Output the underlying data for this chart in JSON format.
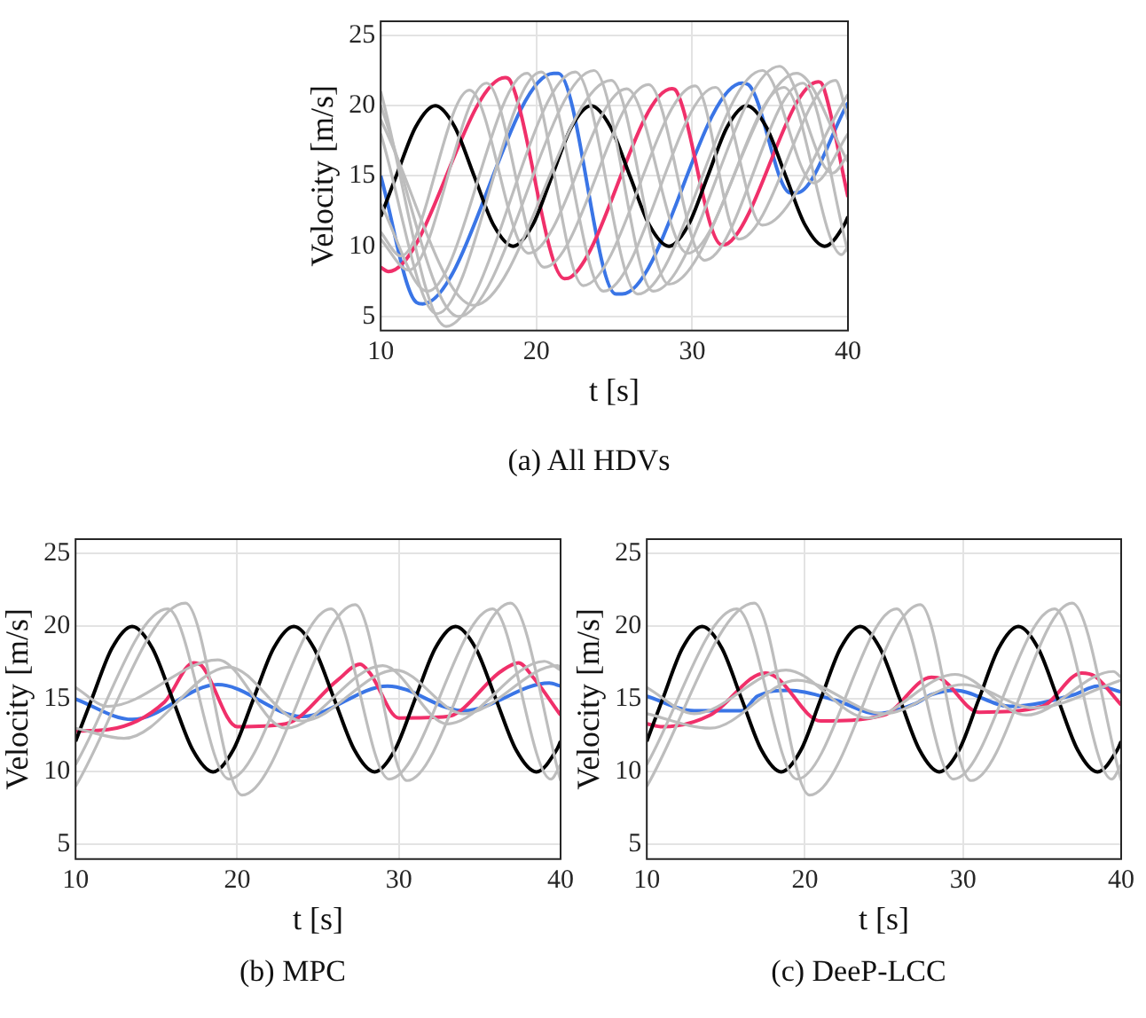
{
  "chart_data": [
    {
      "type": "line",
      "title": "(a)  All HDVs",
      "xlabel": "t [s]",
      "ylabel": "Velocity [m/s]",
      "xlim": [
        10,
        40
      ],
      "ylim": [
        4,
        26
      ],
      "xticks": [
        10,
        20,
        30,
        40
      ],
      "yticks": [
        5,
        10,
        15,
        20,
        25
      ],
      "grid": true,
      "marker": "none",
      "series": [
        {
          "color": "#bdbdbd",
          "x": [
            10,
            11.3,
            15.7,
            19.5,
            25.8,
            29.7,
            35.9,
            39.6,
            40
          ],
          "values": [
            11,
            9.3,
            21.1,
            9.5,
            21.2,
            9.5,
            21.3,
            9.4,
            10
          ]
        },
        {
          "color": "#bdbdbd",
          "x": [
            10,
            11.8,
            16.8,
            20.5,
            27.2,
            30.8,
            37.1,
            40
          ],
          "values": [
            10.5,
            8.3,
            21.6,
            8.5,
            21.5,
            9,
            21.6,
            9.6
          ]
        },
        {
          "color": "#bdbdbd",
          "x": [
            10,
            13,
            19.4,
            23,
            30.2,
            33,
            39.2,
            40
          ],
          "values": [
            13,
            6.8,
            22.3,
            7.2,
            21.4,
            10.5,
            21.8,
            19
          ]
        },
        {
          "color": "#bdbdbd",
          "x": [
            10,
            13.6,
            20.3,
            24.3,
            31.5,
            34.5,
            40
          ],
          "values": [
            18,
            5.2,
            22.4,
            6.8,
            21.3,
            11.5,
            20.8
          ]
        },
        {
          "color": "#bdbdbd",
          "x": [
            10,
            14.2,
            22.5,
            26.5,
            34.5,
            37.8,
            40
          ],
          "values": [
            21,
            4.3,
            22.4,
            6.6,
            22.5,
            14.5,
            18
          ]
        },
        {
          "color": "#bdbdbd",
          "x": [
            10,
            15,
            23.7,
            27.5,
            35.6,
            39,
            40
          ],
          "values": [
            20,
            5,
            22.5,
            6.8,
            22.8,
            15.2,
            16.5
          ]
        },
        {
          "color": "#bdbdbd",
          "x": [
            10,
            16,
            24.8,
            28.5,
            36.7,
            40
          ],
          "values": [
            19,
            5.8,
            21.8,
            7.3,
            22.3,
            16
          ]
        },
        {
          "color": "#000000",
          "x": [
            10,
            11,
            12.25,
            13.5,
            14.75,
            16,
            17.25,
            18.5,
            19.75,
            21,
            22.25,
            23.5,
            24.75,
            26,
            27.25,
            28.5,
            29.75,
            31,
            32.25,
            33.5,
            34.75,
            36,
            37.25,
            38.5,
            39.75,
            40
          ],
          "values": [
            12.1,
            15,
            18.5,
            20,
            18.5,
            15,
            11.5,
            10,
            11.5,
            15,
            18.5,
            20,
            18.5,
            15,
            11.5,
            10,
            11.5,
            15,
            18.5,
            20,
            18.5,
            15,
            11.5,
            10,
            11.5,
            12.1
          ]
        },
        {
          "color": "#f0306a",
          "x": [
            10,
            10.5,
            18,
            18.3,
            21.8,
            22.2,
            28.7,
            29,
            31.9,
            32.3,
            38.1,
            38.4,
            40
          ],
          "values": [
            8.5,
            8.2,
            22,
            21.8,
            7.7,
            7.8,
            21.2,
            21,
            10.1,
            10.2,
            21.7,
            21.4,
            13.5
          ]
        },
        {
          "color": "#3a75e6",
          "x": [
            10,
            12.3,
            12.7,
            21.1,
            21.4,
            25.1,
            25.5,
            33.2,
            33.6,
            36.3,
            36.7,
            40
          ],
          "values": [
            15,
            6,
            5.9,
            22.3,
            22.3,
            6.6,
            6.6,
            21.6,
            21.5,
            13.8,
            13.8,
            20.2
          ]
        }
      ]
    },
    {
      "type": "line",
      "title": "(b)  MPC",
      "xlabel": "t [s]",
      "ylabel": "Velocity [m/s]",
      "xlim": [
        10,
        40
      ],
      "ylim": [
        4,
        26
      ],
      "xticks": [
        10,
        20,
        30,
        40
      ],
      "yticks": [
        5,
        10,
        15,
        20,
        25
      ],
      "grid": true,
      "marker": "none",
      "series": [
        {
          "color": "#bdbdbd",
          "x": [
            10,
            15.7,
            19.5,
            25.8,
            29.4,
            35.8,
            39.4,
            40
          ],
          "values": [
            10.5,
            21.2,
            9.5,
            21.2,
            9.5,
            21.2,
            9.5,
            10.5
          ]
        },
        {
          "color": "#bdbdbd",
          "x": [
            10,
            16.8,
            20.3,
            27.3,
            30.5,
            36.9,
            40
          ],
          "values": [
            9,
            21.6,
            8.4,
            21.5,
            9.4,
            21.6,
            9.4
          ]
        },
        {
          "color": "#bdbdbd",
          "x": [
            10,
            12,
            18.8,
            23,
            29,
            33,
            39,
            40
          ],
          "values": [
            15.8,
            14.5,
            17.7,
            13,
            17.3,
            13.3,
            17.6,
            17
          ]
        },
        {
          "color": "#bdbdbd",
          "x": [
            10,
            13,
            19.5,
            24,
            29.8,
            34,
            39.8,
            40
          ],
          "values": [
            13,
            12.3,
            17.2,
            13.5,
            17,
            14,
            17.3,
            17.2
          ]
        },
        {
          "color": "#000000",
          "x": [
            10,
            11,
            12.25,
            13.5,
            14.75,
            16,
            17.25,
            18.5,
            19.75,
            21,
            22.25,
            23.5,
            24.75,
            26,
            27.25,
            28.5,
            29.75,
            31,
            32.25,
            33.5,
            34.75,
            36,
            37.25,
            38.5,
            39.75,
            40
          ],
          "values": [
            12.1,
            15,
            18.5,
            20,
            18.5,
            15,
            11.5,
            10,
            11.5,
            15,
            18.5,
            20,
            18.5,
            15,
            11.5,
            10,
            11.5,
            15,
            18.5,
            20,
            18.5,
            15,
            11.5,
            10,
            11.5,
            12.1
          ]
        },
        {
          "color": "#f0306a",
          "x": [
            10,
            12,
            15.5,
            17.3,
            17.8,
            20,
            23,
            26.2,
            27.6,
            28.2,
            30,
            33,
            36.3,
            37.4,
            38.3,
            40
          ],
          "values": [
            12.8,
            12.9,
            14.8,
            17.5,
            17.3,
            13.1,
            13.3,
            16.3,
            17.4,
            16.8,
            13.7,
            13.8,
            16.9,
            17.5,
            16.5,
            13.9
          ]
        },
        {
          "color": "#3a75e6",
          "x": [
            10,
            13.5,
            18.8,
            24,
            29.3,
            34,
            39.3,
            40
          ],
          "values": [
            15,
            13.6,
            16,
            13.8,
            15.9,
            14.2,
            16.1,
            15.9
          ]
        }
      ]
    },
    {
      "type": "line",
      "title": "(c)  DeeP-LCC",
      "xlabel": "t [s]",
      "ylabel": "Velocity [m/s]",
      "xlim": [
        10,
        40
      ],
      "ylim": [
        4,
        26
      ],
      "xticks": [
        10,
        20,
        30,
        40
      ],
      "yticks": [
        5,
        10,
        15,
        20,
        25
      ],
      "grid": true,
      "marker": "none",
      "series": [
        {
          "color": "#bdbdbd",
          "x": [
            10,
            15.7,
            19.5,
            25.8,
            29.4,
            35.8,
            39.4,
            40
          ],
          "values": [
            10.5,
            21.2,
            9.5,
            21.2,
            9.5,
            21.2,
            9.5,
            10.5
          ]
        },
        {
          "color": "#bdbdbd",
          "x": [
            10,
            16.8,
            20.3,
            27.3,
            30.5,
            36.9,
            40
          ],
          "values": [
            9,
            21.6,
            8.4,
            21.5,
            9.4,
            21.6,
            9.4
          ]
        },
        {
          "color": "#bdbdbd",
          "x": [
            10,
            13,
            18.8,
            24,
            29.5,
            34,
            39.5,
            40
          ],
          "values": [
            15.8,
            14,
            17,
            13.7,
            16.7,
            13.9,
            16.9,
            16.5
          ]
        },
        {
          "color": "#bdbdbd",
          "x": [
            10,
            14,
            19.5,
            25,
            30,
            34.5,
            40
          ],
          "values": [
            14,
            13,
            16.3,
            14,
            16,
            14.4,
            16.3
          ]
        },
        {
          "color": "#000000",
          "x": [
            10,
            11,
            12.25,
            13.5,
            14.75,
            16,
            17.25,
            18.5,
            19.75,
            21,
            22.25,
            23.5,
            24.75,
            26,
            27.25,
            28.5,
            29.75,
            31,
            32.25,
            33.5,
            34.75,
            36,
            37.25,
            38.5,
            39.75,
            40
          ],
          "values": [
            12.1,
            15,
            18.5,
            20,
            18.5,
            15,
            11.5,
            10,
            11.5,
            15,
            18.5,
            20,
            18.5,
            15,
            11.5,
            10,
            11.5,
            15,
            18.5,
            20,
            18.5,
            15,
            11.5,
            10,
            11.5,
            12.1
          ]
        },
        {
          "color": "#f0306a",
          "x": [
            10,
            11,
            14,
            17.5,
            18.2,
            21,
            25,
            28,
            28.6,
            31,
            35,
            37.5,
            38.3,
            40
          ],
          "values": [
            13.3,
            13.1,
            13.9,
            16.8,
            16.5,
            13.5,
            13.9,
            16.5,
            16.4,
            14.1,
            14.5,
            16.8,
            16.6,
            14.6
          ]
        },
        {
          "color": "#3a75e6",
          "x": [
            10,
            13,
            16,
            17,
            19,
            22,
            24.5,
            27,
            28,
            29.5,
            33,
            37,
            38.5,
            40
          ],
          "values": [
            15.2,
            14.2,
            14.2,
            15.2,
            15.6,
            14.9,
            14,
            14.7,
            15.3,
            15.6,
            14.5,
            15.3,
            15.9,
            15.5
          ]
        }
      ]
    }
  ]
}
